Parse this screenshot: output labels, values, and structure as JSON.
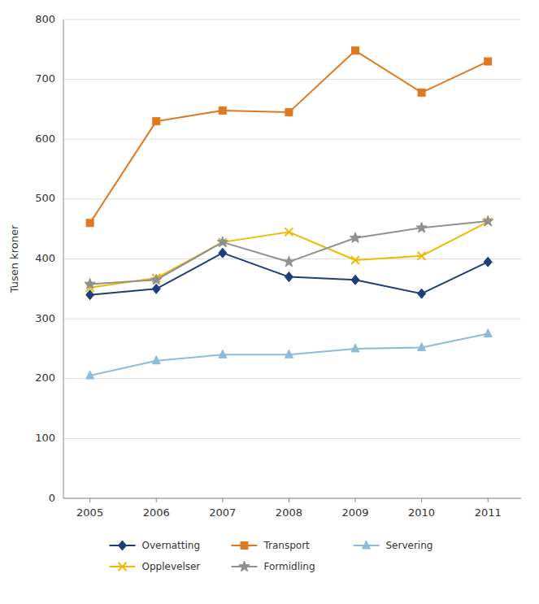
{
  "chart_data": {
    "type": "line",
    "ylabel": "Tusen kroner",
    "x": [
      2005,
      2006,
      2007,
      2008,
      2009,
      2010,
      2011
    ],
    "series": [
      {
        "name": "Overnatting",
        "color": "#1f3d7a",
        "marker": "diamond",
        "values": [
          340,
          350,
          410,
          370,
          365,
          342,
          395
        ]
      },
      {
        "name": "Transport",
        "color": "#e07820",
        "marker": "square",
        "values": [
          460,
          630,
          648,
          645,
          748,
          678,
          730
        ]
      },
      {
        "name": "Servering",
        "color": "#8fbbda",
        "marker": "triangle",
        "values": [
          205,
          230,
          240,
          240,
          250,
          252,
          275
        ]
      },
      {
        "name": "Opplevelser",
        "color": "#f0b800",
        "marker": "x",
        "values": [
          352,
          368,
          428,
          445,
          398,
          405,
          462
        ]
      },
      {
        "name": "Formidling",
        "color": "#909090",
        "marker": "star",
        "values": [
          358,
          365,
          428,
          395,
          435,
          452,
          463
        ]
      }
    ],
    "xlim": [
      2004.6,
      2011.5
    ],
    "xticks": [
      2005,
      2006,
      2007,
      2008,
      2009,
      2010,
      2011
    ],
    "ylim": [
      0,
      800
    ],
    "yticks": [
      0,
      100,
      200,
      300,
      400,
      500,
      600,
      700,
      800
    ],
    "grid": true,
    "legend": "bottom"
  }
}
